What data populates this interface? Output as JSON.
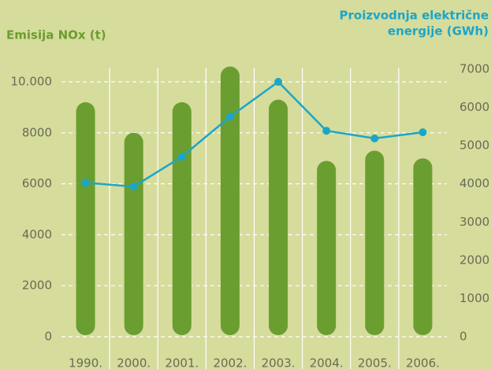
{
  "chart_data": {
    "type": "bar",
    "y_label": "Emisija NOx (t)",
    "y2_label": [
      "Proizvodnja električne",
      "energije (GWh)"
    ],
    "categories": [
      "1990.",
      "2000.",
      "2001.",
      "2002.",
      "2003.",
      "2004.",
      "2005.",
      "2006."
    ],
    "series": [
      {
        "name": "Emisija NOx (t)",
        "type": "bar",
        "color": "#6b9e30",
        "values": [
          9200,
          8000,
          9200,
          10600,
          9300,
          6900,
          7300,
          7000
        ]
      },
      {
        "name": "Proizvodnja električne energije (GWh)",
        "type": "line",
        "axis": "y2",
        "color": "#1ba6c9",
        "values": [
          4030,
          3930,
          4710,
          5760,
          6670,
          5390,
          5190,
          5350
        ]
      }
    ],
    "ylim": [
      0,
      10000
    ],
    "yticks": [
      0,
      2000,
      4000,
      6000,
      8000,
      {
        "value": 10000,
        "label": "10.000"
      }
    ],
    "y2lim": [
      0,
      7000
    ],
    "y2ticks": [
      0,
      1000,
      2000,
      3000,
      4000,
      5000,
      6000,
      7000
    ],
    "grid": true
  }
}
